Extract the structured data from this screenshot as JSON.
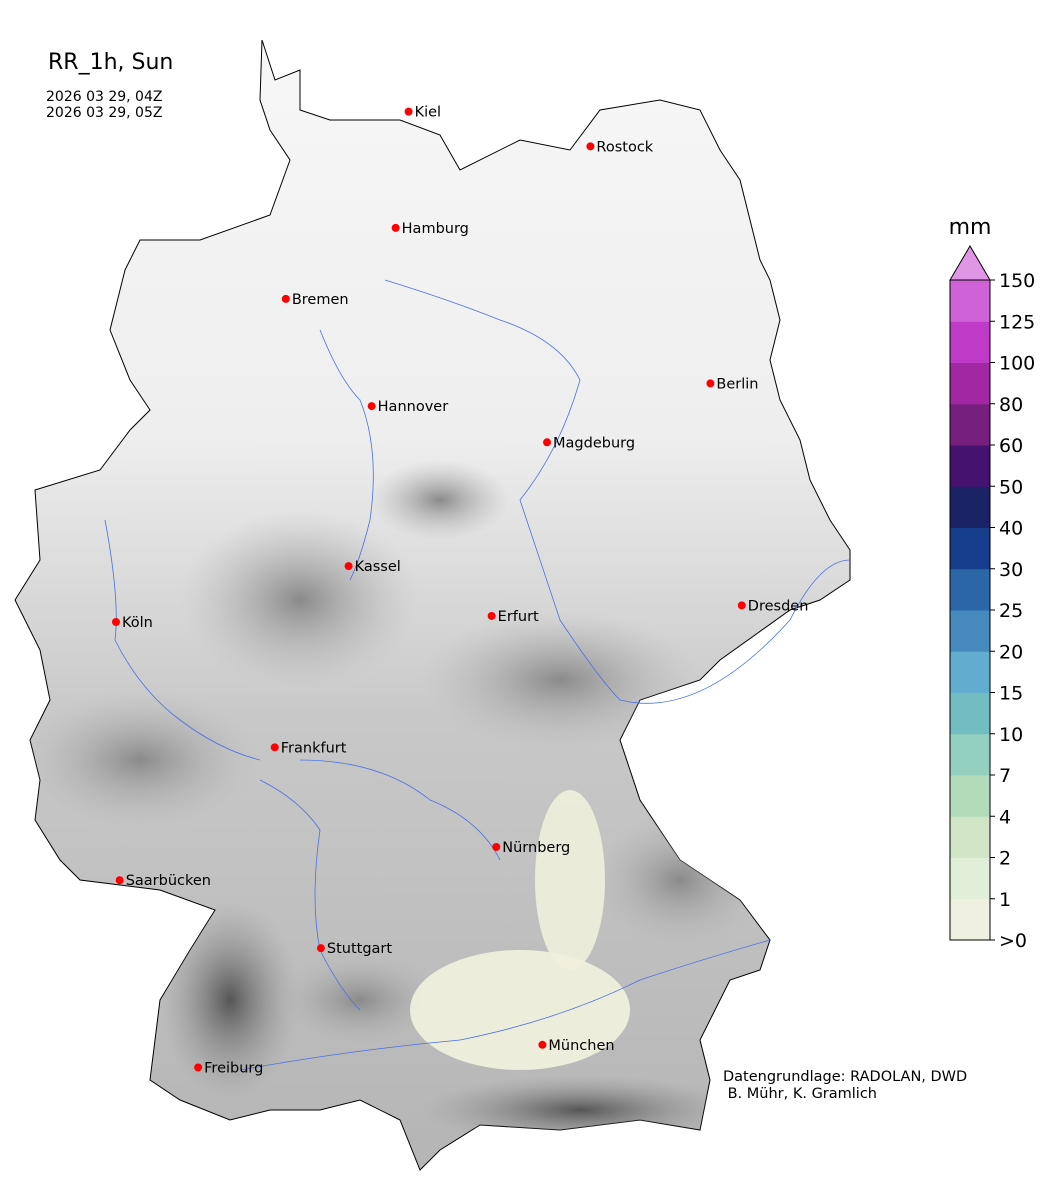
{
  "title": "RR_1h, Sun",
  "time_start": "2026 03 29, 04Z",
  "time_end": "2026 03 29, 05Z",
  "credits": [
    "Datengrundlage: RADOLAN, DWD",
    " B. Mühr, K. Gramlich"
  ],
  "colorbar": {
    "unit": "mm",
    "tick_labels": [
      ">0",
      "1",
      "2",
      "4",
      "7",
      "10",
      "15",
      "20",
      "25",
      "30",
      "40",
      "50",
      "60",
      "80",
      "100",
      "125",
      "150"
    ],
    "colors": [
      "#f0f0e0",
      "#e2efd8",
      "#d0e6c6",
      "#b2dbba",
      "#93d0c0",
      "#72bdc2",
      "#62acd0",
      "#4589bd",
      "#2b67a6",
      "#163e8c",
      "#1a2366",
      "#461270",
      "#761f7e",
      "#a128a2",
      "#c03ac8",
      "#d062d8"
    ],
    "extend_color": "#e096e4"
  },
  "cities": [
    {
      "name": "Kiel",
      "lon": 10.13,
      "lat": 54.32
    },
    {
      "name": "Rostock",
      "lon": 12.1,
      "lat": 54.09
    },
    {
      "name": "Hamburg",
      "lon": 9.99,
      "lat": 53.55
    },
    {
      "name": "Bremen",
      "lon": 8.8,
      "lat": 53.08
    },
    {
      "name": "Berlin",
      "lon": 13.4,
      "lat": 52.52
    },
    {
      "name": "Hannover",
      "lon": 9.73,
      "lat": 52.37
    },
    {
      "name": "Magdeburg",
      "lon": 11.63,
      "lat": 52.13
    },
    {
      "name": "Kassel",
      "lon": 9.48,
      "lat": 51.31
    },
    {
      "name": "Köln",
      "lon": 6.96,
      "lat": 50.94
    },
    {
      "name": "Erfurt",
      "lon": 11.03,
      "lat": 50.98
    },
    {
      "name": "Dresden",
      "lon": 13.74,
      "lat": 51.05
    },
    {
      "name": "Frankfurt",
      "lon": 8.68,
      "lat": 50.11
    },
    {
      "name": "Nürnberg",
      "lon": 11.08,
      "lat": 49.45
    },
    {
      "name": "Saarbücken",
      "lon": 7.0,
      "lat": 49.23
    },
    {
      "name": "Stuttgart",
      "lon": 9.18,
      "lat": 48.78
    },
    {
      "name": "Freiburg",
      "lon": 7.85,
      "lat": 47.99
    },
    {
      "name": "München",
      "lon": 11.58,
      "lat": 48.14
    }
  ],
  "city_marker_color": "#ff0000",
  "river_color": "#4a6fe3"
}
